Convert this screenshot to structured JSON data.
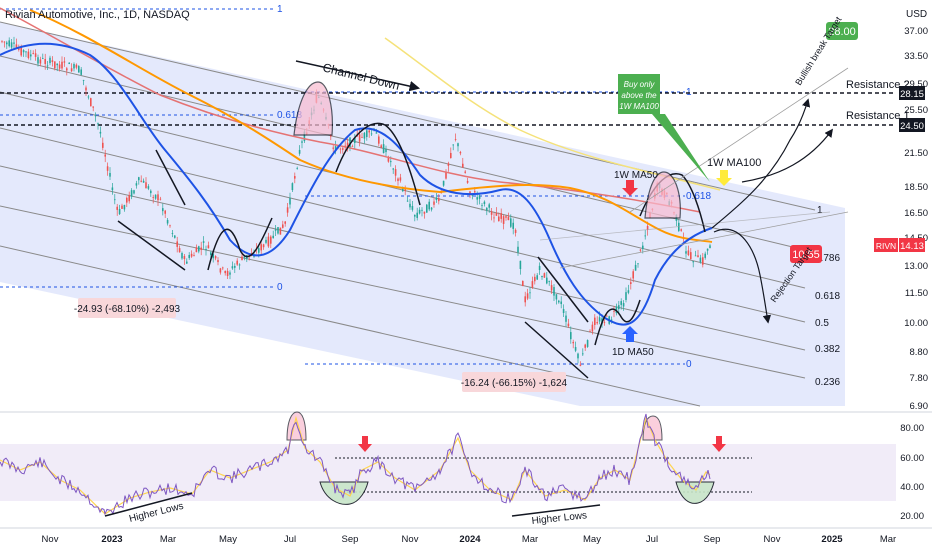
{
  "header": {
    "title": "Rivian Automotive, Inc., 1D, NASDAQ",
    "currency": "USD"
  },
  "colors": {
    "up": "#26a69a",
    "down": "#ef5350",
    "ma50": "#1e53e5",
    "ma100": "#ff9800",
    "ma200": "#e57373",
    "ma_yellow": "#f5e27a",
    "rsi": "#7e57c2",
    "rsi_ma": "#ffd54f",
    "channel_fill": "#dfe5fb",
    "accent_green": "#4caf50",
    "accent_red": "#f23645",
    "accent_blue": "#2962ff",
    "accent_yellow": "#ffeb3b",
    "rsi_band": "#ede7f6"
  },
  "price_axis": {
    "ticks": [
      "37.00",
      "33.50",
      "29.50",
      "25.50",
      "21.50",
      "18.50",
      "16.50",
      "14.50",
      "13.00",
      "11.50",
      "10.00",
      "8.80",
      "7.80",
      "6.90"
    ]
  },
  "rsi_axis": {
    "ticks": [
      "80.00",
      "60.00",
      "40.00",
      "20.00"
    ]
  },
  "time_axis": {
    "ticks": [
      "Nov",
      "2023",
      "Mar",
      "May",
      "Jul",
      "Sep",
      "Nov",
      "2024",
      "Mar",
      "May",
      "Jul",
      "Sep",
      "Nov",
      "2025",
      "Mar"
    ]
  },
  "price_tags": [
    {
      "text": "28.15",
      "kind": "dark"
    },
    {
      "text": "24.50",
      "kind": "dark"
    },
    {
      "text": "14.13",
      "kind": "red",
      "prefix": "RIVN"
    }
  ],
  "annotations": {
    "channel_down": "Channel Down",
    "buy_box": [
      "Buy only",
      "above the",
      "1W MA100"
    ],
    "ma100_label": "1W MA100",
    "ma50w_label": "1W MA50",
    "ma50d_label": "1D MA50",
    "resistance1": "Resistance 1",
    "resistance2": "Resistance 2",
    "target_box": "28.00",
    "rejection_box": "10.55",
    "bullish_text": "Bullish break Target",
    "rejection_text": "Rejection Target",
    "measure_left": "-24.93 (-68.10%) -2,493",
    "measure_right": "-16.24 (-66.15%) -1,624",
    "higher_lows_left": "Higher Lows",
    "higher_lows_right": "Higher Lows"
  },
  "fib_left": [
    "1",
    "0.618",
    "0"
  ],
  "fib_mid": [
    "1",
    "0.618",
    "0"
  ],
  "fib_right": [
    "1",
    "0.786",
    "0.618",
    "0.5",
    "0.382",
    "0.236"
  ],
  "chart_data": {
    "type": "line",
    "title": "Rivian Automotive, Inc., 1D, NASDAQ",
    "series": [
      {
        "name": "1W MA50",
        "approx_points": [
          [
            "2022-11",
            23.5
          ],
          [
            "2023-03",
            19.0
          ],
          [
            "2023-05",
            16.0
          ],
          [
            "2023-07",
            17.0
          ],
          [
            "2023-09",
            20.5
          ],
          [
            "2023-11",
            18.5
          ],
          [
            "2024-01",
            17.8
          ],
          [
            "2024-03",
            15.0
          ],
          [
            "2024-05",
            11.5
          ],
          [
            "2024-07",
            12.5
          ],
          [
            "2024-09",
            14.5
          ]
        ]
      },
      {
        "name": "1W MA100",
        "approx_points": [
          [
            "2022-11",
            36.0
          ],
          [
            "2023-03",
            30.0
          ],
          [
            "2023-07",
            23.5
          ],
          [
            "2023-11",
            20.0
          ],
          [
            "2024-03",
            18.8
          ],
          [
            "2024-07",
            17.5
          ],
          [
            "2024-09",
            17.5
          ]
        ]
      }
    ],
    "levels": {
      "resistance_1": 24.5,
      "resistance_2": 28.15,
      "last_price": 14.13,
      "bullish_target": 28.0,
      "rejection_target": 10.55
    },
    "rsi_levels": [
      60,
      40
    ]
  }
}
